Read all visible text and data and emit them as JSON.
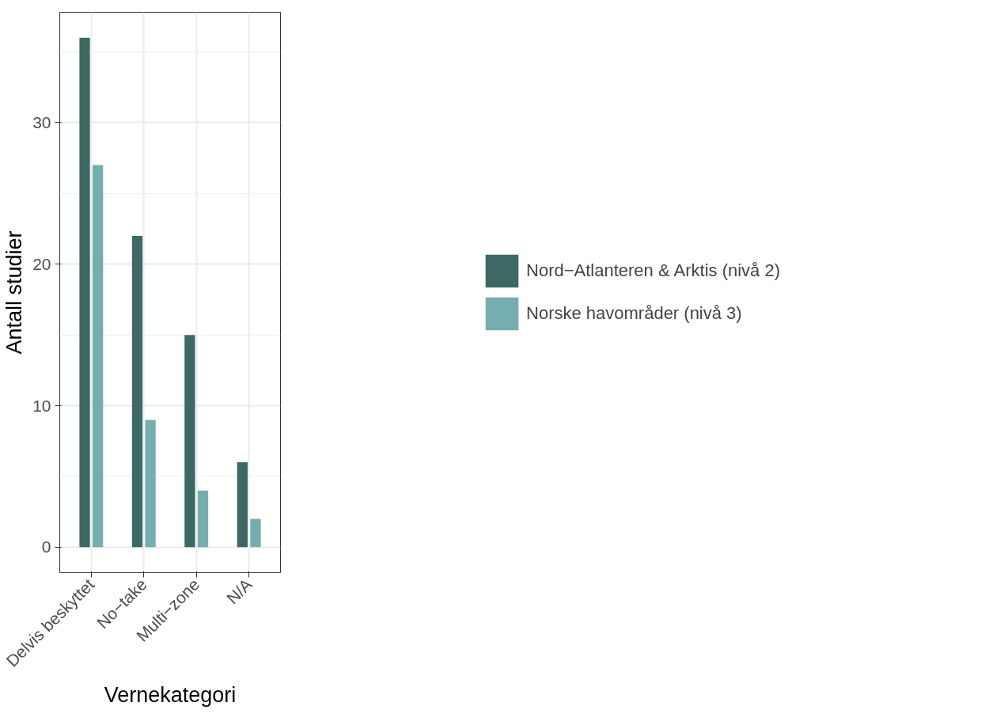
{
  "chart_data": {
    "type": "bar",
    "xlabel": "Vernekategori",
    "ylabel": "Antall studier",
    "categories": [
      "Delvis beskyttet",
      "No−take",
      "Multi−zone",
      "N/A"
    ],
    "series": [
      {
        "name": "Nord−Atlanteren & Arktis (nivå 2)",
        "color": "#3c6963",
        "values": [
          36,
          22,
          15,
          6
        ]
      },
      {
        "name": "Norske havområder (nivå 3)",
        "color": "#74aeae",
        "values": [
          27,
          9,
          4,
          2
        ]
      }
    ],
    "ylim": [
      -1.8,
      37.8
    ],
    "yticks": [
      0,
      10,
      20,
      30
    ],
    "grid": true,
    "legend": "right"
  }
}
